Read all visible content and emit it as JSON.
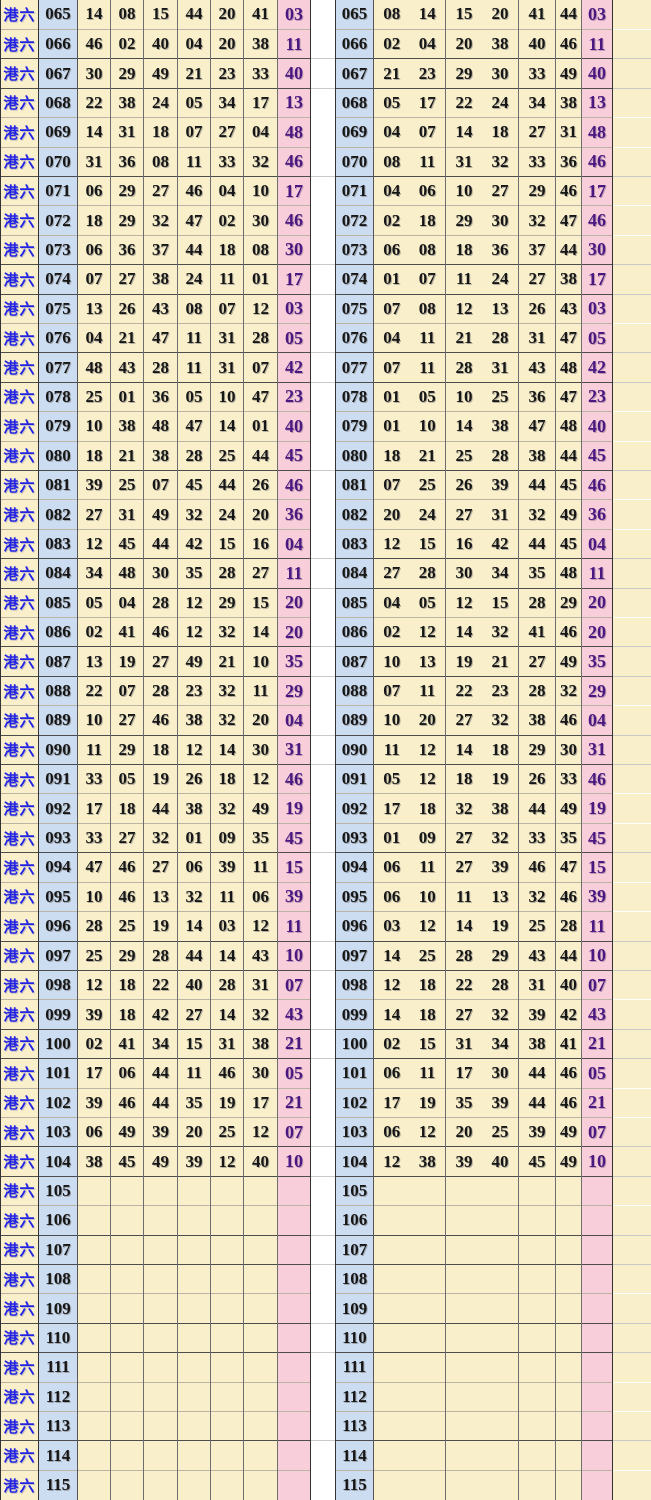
{
  "row_label": "港六",
  "colors": {
    "number_cell_bg": "#f9efcb",
    "period_cell_bg": "#ccdcf1",
    "special_cell_bg": "#f8ceda",
    "label_text": "#2323e4",
    "number_text": "#161616",
    "special_text": "#4a1880",
    "gap_bg": "#ffffff",
    "group_border": "#4d4d4d",
    "thin_border": "#b9b4a4"
  },
  "week_group_starts": [
    "067",
    "068",
    "071",
    "074",
    "075",
    "077",
    "078",
    "081",
    "084",
    "085",
    "087",
    "088",
    "090",
    "091",
    "094",
    "097",
    "098",
    "100",
    "101",
    "104",
    "105",
    "107",
    "108",
    "110",
    "111",
    "114"
  ],
  "rows": [
    {
      "period": "065",
      "numbers": [
        "14",
        "08",
        "15",
        "44",
        "20",
        "41"
      ],
      "sorted": [
        "08",
        "14",
        "15",
        "20",
        "41",
        "44"
      ],
      "special": "03"
    },
    {
      "period": "066",
      "numbers": [
        "46",
        "02",
        "40",
        "04",
        "20",
        "38"
      ],
      "sorted": [
        "02",
        "04",
        "20",
        "38",
        "40",
        "46"
      ],
      "special": "11"
    },
    {
      "period": "067",
      "numbers": [
        "30",
        "29",
        "49",
        "21",
        "23",
        "33"
      ],
      "sorted": [
        "21",
        "23",
        "29",
        "30",
        "33",
        "49"
      ],
      "special": "40"
    },
    {
      "period": "068",
      "numbers": [
        "22",
        "38",
        "24",
        "05",
        "34",
        "17"
      ],
      "sorted": [
        "05",
        "17",
        "22",
        "24",
        "34",
        "38"
      ],
      "special": "13"
    },
    {
      "period": "069",
      "numbers": [
        "14",
        "31",
        "18",
        "07",
        "27",
        "04"
      ],
      "sorted": [
        "04",
        "07",
        "14",
        "18",
        "27",
        "31"
      ],
      "special": "48"
    },
    {
      "period": "070",
      "numbers": [
        "31",
        "36",
        "08",
        "11",
        "33",
        "32"
      ],
      "sorted": [
        "08",
        "11",
        "31",
        "32",
        "33",
        "36"
      ],
      "special": "46"
    },
    {
      "period": "071",
      "numbers": [
        "06",
        "29",
        "27",
        "46",
        "04",
        "10"
      ],
      "sorted": [
        "04",
        "06",
        "10",
        "27",
        "29",
        "46"
      ],
      "special": "17"
    },
    {
      "period": "072",
      "numbers": [
        "18",
        "29",
        "32",
        "47",
        "02",
        "30"
      ],
      "sorted": [
        "02",
        "18",
        "29",
        "30",
        "32",
        "47"
      ],
      "special": "46"
    },
    {
      "period": "073",
      "numbers": [
        "06",
        "36",
        "37",
        "44",
        "18",
        "08"
      ],
      "sorted": [
        "06",
        "08",
        "18",
        "36",
        "37",
        "44"
      ],
      "special": "30"
    },
    {
      "period": "074",
      "numbers": [
        "07",
        "27",
        "38",
        "24",
        "11",
        "01"
      ],
      "sorted": [
        "01",
        "07",
        "11",
        "24",
        "27",
        "38"
      ],
      "special": "17"
    },
    {
      "period": "075",
      "numbers": [
        "13",
        "26",
        "43",
        "08",
        "07",
        "12"
      ],
      "sorted": [
        "07",
        "08",
        "12",
        "13",
        "26",
        "43"
      ],
      "special": "03"
    },
    {
      "period": "076",
      "numbers": [
        "04",
        "21",
        "47",
        "11",
        "31",
        "28"
      ],
      "sorted": [
        "04",
        "11",
        "21",
        "28",
        "31",
        "47"
      ],
      "special": "05"
    },
    {
      "period": "077",
      "numbers": [
        "48",
        "43",
        "28",
        "11",
        "31",
        "07"
      ],
      "sorted": [
        "07",
        "11",
        "28",
        "31",
        "43",
        "48"
      ],
      "special": "42"
    },
    {
      "period": "078",
      "numbers": [
        "25",
        "01",
        "36",
        "05",
        "10",
        "47"
      ],
      "sorted": [
        "01",
        "05",
        "10",
        "25",
        "36",
        "47"
      ],
      "special": "23"
    },
    {
      "period": "079",
      "numbers": [
        "10",
        "38",
        "48",
        "47",
        "14",
        "01"
      ],
      "sorted": [
        "01",
        "10",
        "14",
        "38",
        "47",
        "48"
      ],
      "special": "40"
    },
    {
      "period": "080",
      "numbers": [
        "18",
        "21",
        "38",
        "28",
        "25",
        "44"
      ],
      "sorted": [
        "18",
        "21",
        "25",
        "28",
        "38",
        "44"
      ],
      "special": "45"
    },
    {
      "period": "081",
      "numbers": [
        "39",
        "25",
        "07",
        "45",
        "44",
        "26"
      ],
      "sorted": [
        "07",
        "25",
        "26",
        "39",
        "44",
        "45"
      ],
      "special": "46"
    },
    {
      "period": "082",
      "numbers": [
        "27",
        "31",
        "49",
        "32",
        "24",
        "20"
      ],
      "sorted": [
        "20",
        "24",
        "27",
        "31",
        "32",
        "49"
      ],
      "special": "36"
    },
    {
      "period": "083",
      "numbers": [
        "12",
        "45",
        "44",
        "42",
        "15",
        "16"
      ],
      "sorted": [
        "12",
        "15",
        "16",
        "42",
        "44",
        "45"
      ],
      "special": "04"
    },
    {
      "period": "084",
      "numbers": [
        "34",
        "48",
        "30",
        "35",
        "28",
        "27"
      ],
      "sorted": [
        "27",
        "28",
        "30",
        "34",
        "35",
        "48"
      ],
      "special": "11"
    },
    {
      "period": "085",
      "numbers": [
        "05",
        "04",
        "28",
        "12",
        "29",
        "15"
      ],
      "sorted": [
        "04",
        "05",
        "12",
        "15",
        "28",
        "29"
      ],
      "special": "20"
    },
    {
      "period": "086",
      "numbers": [
        "02",
        "41",
        "46",
        "12",
        "32",
        "14"
      ],
      "sorted": [
        "02",
        "12",
        "14",
        "32",
        "41",
        "46"
      ],
      "special": "20"
    },
    {
      "period": "087",
      "numbers": [
        "13",
        "19",
        "27",
        "49",
        "21",
        "10"
      ],
      "sorted": [
        "10",
        "13",
        "19",
        "21",
        "27",
        "49"
      ],
      "special": "35"
    },
    {
      "period": "088",
      "numbers": [
        "22",
        "07",
        "28",
        "23",
        "32",
        "11"
      ],
      "sorted": [
        "07",
        "11",
        "22",
        "23",
        "28",
        "32"
      ],
      "special": "29"
    },
    {
      "period": "089",
      "numbers": [
        "10",
        "27",
        "46",
        "38",
        "32",
        "20"
      ],
      "sorted": [
        "10",
        "20",
        "27",
        "32",
        "38",
        "46"
      ],
      "special": "04"
    },
    {
      "period": "090",
      "numbers": [
        "11",
        "29",
        "18",
        "12",
        "14",
        "30"
      ],
      "sorted": [
        "11",
        "12",
        "14",
        "18",
        "29",
        "30"
      ],
      "special": "31"
    },
    {
      "period": "091",
      "numbers": [
        "33",
        "05",
        "19",
        "26",
        "18",
        "12"
      ],
      "sorted": [
        "05",
        "12",
        "18",
        "19",
        "26",
        "33"
      ],
      "special": "46"
    },
    {
      "period": "092",
      "numbers": [
        "17",
        "18",
        "44",
        "38",
        "32",
        "49"
      ],
      "sorted": [
        "17",
        "18",
        "32",
        "38",
        "44",
        "49"
      ],
      "special": "19"
    },
    {
      "period": "093",
      "numbers": [
        "33",
        "27",
        "32",
        "01",
        "09",
        "35"
      ],
      "sorted": [
        "01",
        "09",
        "27",
        "32",
        "33",
        "35"
      ],
      "special": "45"
    },
    {
      "period": "094",
      "numbers": [
        "47",
        "46",
        "27",
        "06",
        "39",
        "11"
      ],
      "sorted": [
        "06",
        "11",
        "27",
        "39",
        "46",
        "47"
      ],
      "special": "15"
    },
    {
      "period": "095",
      "numbers": [
        "10",
        "46",
        "13",
        "32",
        "11",
        "06"
      ],
      "sorted": [
        "06",
        "10",
        "11",
        "13",
        "32",
        "46"
      ],
      "special": "39"
    },
    {
      "period": "096",
      "numbers": [
        "28",
        "25",
        "19",
        "14",
        "03",
        "12"
      ],
      "sorted": [
        "03",
        "12",
        "14",
        "19",
        "25",
        "28"
      ],
      "special": "11"
    },
    {
      "period": "097",
      "numbers": [
        "25",
        "29",
        "28",
        "44",
        "14",
        "43"
      ],
      "sorted": [
        "14",
        "25",
        "28",
        "29",
        "43",
        "44"
      ],
      "special": "10"
    },
    {
      "period": "098",
      "numbers": [
        "12",
        "18",
        "22",
        "40",
        "28",
        "31"
      ],
      "sorted": [
        "12",
        "18",
        "22",
        "28",
        "31",
        "40"
      ],
      "special": "07"
    },
    {
      "period": "099",
      "numbers": [
        "39",
        "18",
        "42",
        "27",
        "14",
        "32"
      ],
      "sorted": [
        "14",
        "18",
        "27",
        "32",
        "39",
        "42"
      ],
      "special": "43"
    },
    {
      "period": "100",
      "numbers": [
        "02",
        "41",
        "34",
        "15",
        "31",
        "38"
      ],
      "sorted": [
        "02",
        "15",
        "31",
        "34",
        "38",
        "41"
      ],
      "special": "21"
    },
    {
      "period": "101",
      "numbers": [
        "17",
        "06",
        "44",
        "11",
        "46",
        "30"
      ],
      "sorted": [
        "06",
        "11",
        "17",
        "30",
        "44",
        "46"
      ],
      "special": "05"
    },
    {
      "period": "102",
      "numbers": [
        "39",
        "46",
        "44",
        "35",
        "19",
        "17"
      ],
      "sorted": [
        "17",
        "19",
        "35",
        "39",
        "44",
        "46"
      ],
      "special": "21"
    },
    {
      "period": "103",
      "numbers": [
        "06",
        "49",
        "39",
        "20",
        "25",
        "12"
      ],
      "sorted": [
        "06",
        "12",
        "20",
        "25",
        "39",
        "49"
      ],
      "special": "07"
    },
    {
      "period": "104",
      "numbers": [
        "38",
        "45",
        "49",
        "39",
        "12",
        "40"
      ],
      "sorted": [
        "12",
        "38",
        "39",
        "40",
        "45",
        "49"
      ],
      "special": "10"
    },
    {
      "period": "105",
      "numbers": [],
      "sorted": [],
      "special": ""
    },
    {
      "period": "106",
      "numbers": [],
      "sorted": [],
      "special": ""
    },
    {
      "period": "107",
      "numbers": [],
      "sorted": [],
      "special": ""
    },
    {
      "period": "108",
      "numbers": [],
      "sorted": [],
      "special": ""
    },
    {
      "period": "109",
      "numbers": [],
      "sorted": [],
      "special": ""
    },
    {
      "period": "110",
      "numbers": [],
      "sorted": [],
      "special": ""
    },
    {
      "period": "111",
      "numbers": [],
      "sorted": [],
      "special": ""
    },
    {
      "period": "112",
      "numbers": [],
      "sorted": [],
      "special": ""
    },
    {
      "period": "113",
      "numbers": [],
      "sorted": [],
      "special": ""
    },
    {
      "period": "114",
      "numbers": [],
      "sorted": [],
      "special": ""
    },
    {
      "period": "115",
      "numbers": [],
      "sorted": [],
      "special": ""
    }
  ]
}
